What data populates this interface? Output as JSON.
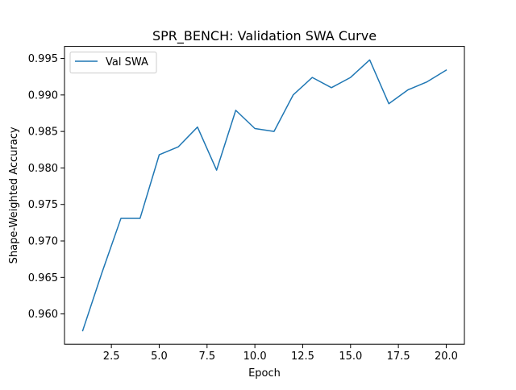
{
  "chart_data": {
    "type": "line",
    "title": "SPR_BENCH: Validation SWA Curve",
    "xlabel": "Epoch",
    "ylabel": "Shape-Weighted Accuracy",
    "x": [
      1,
      2,
      3,
      4,
      5,
      6,
      7,
      8,
      9,
      10,
      11,
      12,
      13,
      14,
      15,
      16,
      17,
      18,
      19,
      20
    ],
    "series": [
      {
        "name": "Val SWA",
        "color": "#1f77b4",
        "values": [
          0.9577,
          0.9656,
          0.9731,
          0.9731,
          0.9818,
          0.9829,
          0.9856,
          0.9797,
          0.9879,
          0.9854,
          0.985,
          0.99,
          0.9924,
          0.991,
          0.9924,
          0.9948,
          0.9888,
          0.9907,
          0.9918,
          0.9934
        ]
      }
    ],
    "xlim": [
      0.05,
      20.95
    ],
    "ylim": [
      0.95585,
      0.99665
    ],
    "xticks": [
      2.5,
      5.0,
      7.5,
      10.0,
      12.5,
      15.0,
      17.5,
      20.0
    ],
    "xtick_labels": [
      "2.5",
      "5.0",
      "7.5",
      "10.0",
      "12.5",
      "15.0",
      "17.5",
      "20.0"
    ],
    "yticks": [
      0.96,
      0.965,
      0.97,
      0.975,
      0.98,
      0.985,
      0.99,
      0.995
    ],
    "ytick_labels": [
      "0.960",
      "0.965",
      "0.970",
      "0.975",
      "0.980",
      "0.985",
      "0.990",
      "0.995"
    ],
    "grid": false,
    "legend_position": "top-left"
  }
}
